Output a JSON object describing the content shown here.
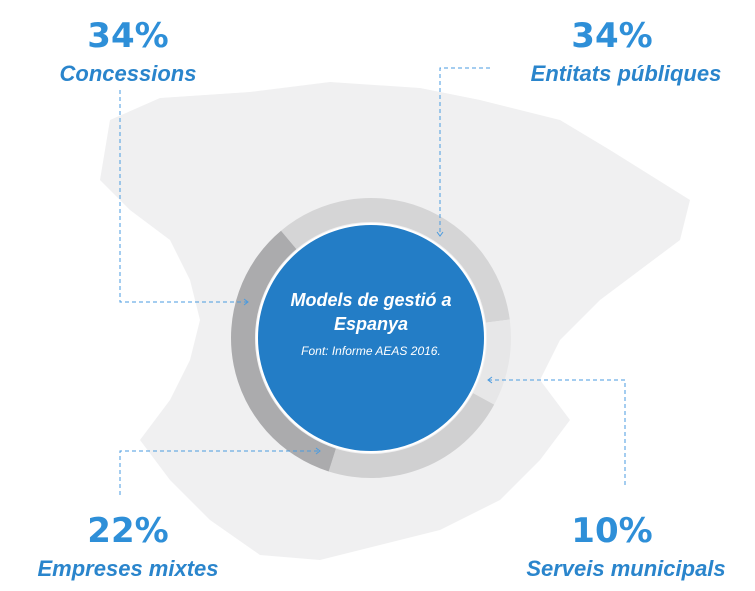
{
  "chart_data": {
    "type": "donut",
    "title": "Models de gestió a Espanya",
    "subtitle": "Font: Informe AEAS 2016.",
    "categories": [
      "Entitats públiques",
      "Serveis municipals",
      "Empreses mixtes",
      "Concessions"
    ],
    "values": [
      34,
      10,
      22,
      34
    ],
    "value_labels": [
      "34%",
      "10%",
      "22%",
      "34%"
    ],
    "colors": [
      "#d5d5d6",
      "#e7e7e8",
      "#d0d0d1",
      "#ababad"
    ]
  }
}
